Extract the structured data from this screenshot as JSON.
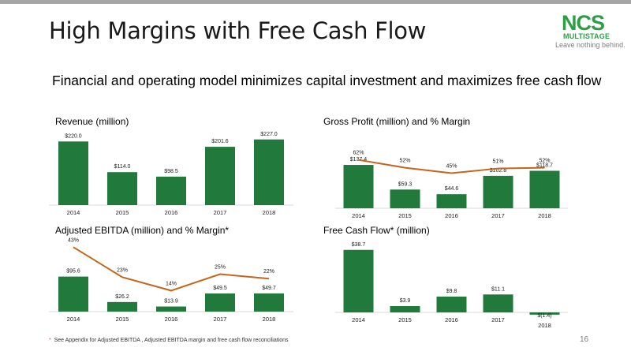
{
  "slide": {
    "title": "High Margins with Free Cash Flow",
    "subtitle": "Financial and operating model minimizes capital investment and maximizes free cash flow",
    "logo": {
      "name": "NCS",
      "sub": "MULTISTAGE",
      "tagline": "Leave nothing behind."
    },
    "footnote_mark": "*",
    "footnote": "See Appendix for Adjusted EBITDA , Adjusted EBITDA margin and free cash flow reconciliations",
    "page_number": "16"
  },
  "colors": {
    "bar": "#217a3c",
    "line": "#c5651c",
    "axis": "#d9d9d9",
    "logo": "#2e9e46"
  },
  "chart_data": [
    {
      "id": "revenue",
      "type": "bar",
      "title": "Revenue (million)",
      "categories": [
        "2014",
        "2015",
        "2016",
        "2017",
        "2018"
      ],
      "values": [
        220.0,
        114.0,
        98.5,
        201.6,
        227.0
      ],
      "value_labels": [
        "$220.0",
        "$114.0",
        "$98.5",
        "$201.6",
        "$227.0"
      ],
      "ylim": [
        0,
        240
      ]
    },
    {
      "id": "gross-profit",
      "type": "bar",
      "title": "Gross Profit (million) and % Margin",
      "categories": [
        "2014",
        "2015",
        "2016",
        "2017",
        "2018"
      ],
      "values": [
        137.4,
        59.3,
        44.6,
        102.8,
        118.7
      ],
      "value_labels": [
        "$137.4",
        "$59.3",
        "$44.6",
        "$102.8",
        "$118.7"
      ],
      "ylim": [
        0,
        160
      ],
      "margin_series": {
        "values": [
          62,
          52,
          45,
          51,
          52
        ],
        "labels": [
          "62%",
          "52%",
          "45%",
          "51%",
          "52%"
        ],
        "ylim": [
          0,
          90
        ]
      }
    },
    {
      "id": "adjusted-ebitda",
      "type": "bar",
      "title": "Adjusted EBITDA (million) and % Margin*",
      "categories": [
        "2014",
        "2015",
        "2016",
        "2017",
        "2018"
      ],
      "values": [
        95.6,
        26.2,
        13.9,
        49.5,
        49.7
      ],
      "value_labels": [
        "$95.6",
        "$26.2",
        "$13.9",
        "$49.5",
        "$49.7"
      ],
      "ylim": [
        0,
        140
      ],
      "margin_series": {
        "values": [
          43,
          23,
          14,
          25,
          22
        ],
        "labels": [
          "43%",
          "23%",
          "14%",
          "25%",
          "22%"
        ],
        "ylim": [
          0,
          50
        ]
      }
    },
    {
      "id": "free-cash-flow",
      "type": "bar",
      "title": "Free Cash Flow* (million)",
      "categories": [
        "2014",
        "2015",
        "2016",
        "2017",
        "2018"
      ],
      "values": [
        38.7,
        3.9,
        9.8,
        11.1,
        -1.4
      ],
      "value_labels": [
        "$38.7",
        "$3.9",
        "$9.8",
        "$11.1",
        "$(1.4)"
      ],
      "ylim": [
        -2,
        42
      ]
    }
  ]
}
